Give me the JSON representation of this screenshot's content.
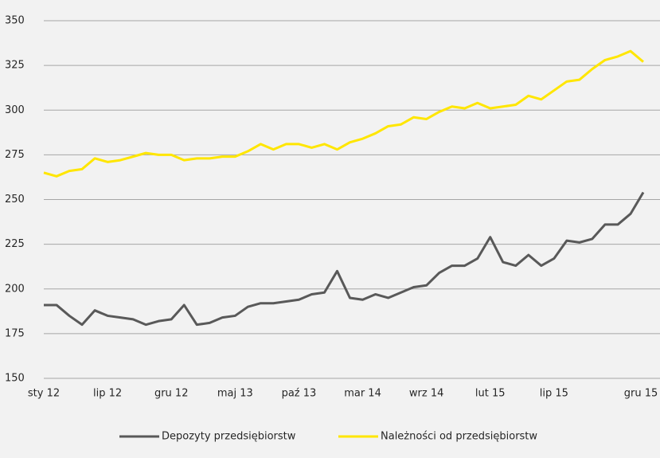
{
  "chart_data": {
    "type": "line",
    "categories": [
      "sty 12",
      null,
      null,
      null,
      null,
      "lip 12",
      null,
      null,
      null,
      null,
      "gru 12",
      null,
      null,
      null,
      null,
      "maj 13",
      null,
      null,
      null,
      null,
      "paź 13",
      null,
      null,
      null,
      null,
      "mar 14",
      null,
      null,
      null,
      null,
      "wrz 14",
      null,
      null,
      null,
      null,
      "lut 15",
      null,
      null,
      null,
      null,
      "lip 15",
      null,
      null,
      null,
      null,
      null,
      null,
      "gru 15"
    ],
    "series": [
      {
        "name": "Depozyty przedsiębiorstw",
        "color": "#595959",
        "values": [
          191,
          191,
          185,
          180,
          188,
          185,
          184,
          183,
          180,
          182,
          183,
          191,
          180,
          181,
          184,
          185,
          190,
          192,
          192,
          193,
          194,
          197,
          198,
          210,
          195,
          194,
          197,
          195,
          198,
          201,
          202,
          209,
          213,
          213,
          217,
          229,
          215,
          213,
          219,
          213,
          217,
          227,
          226,
          228,
          236,
          236,
          242,
          254
        ]
      },
      {
        "name": "Należności od przedsiębiorstw",
        "color": "#ffe600",
        "values": [
          265,
          263,
          266,
          267,
          273,
          271,
          272,
          274,
          276,
          275,
          275,
          272,
          273,
          273,
          274,
          274,
          277,
          281,
          278,
          281,
          281,
          279,
          281,
          278,
          282,
          284,
          287,
          291,
          292,
          296,
          295,
          299,
          302,
          301,
          304,
          301,
          302,
          303,
          308,
          306,
          311,
          316,
          317,
          323,
          328,
          330,
          333,
          327
        ]
      }
    ],
    "ylim": [
      150,
      350
    ],
    "yticks": [
      150,
      175,
      200,
      225,
      250,
      275,
      300,
      325,
      350
    ],
    "grid": true,
    "legend": "bottom"
  }
}
